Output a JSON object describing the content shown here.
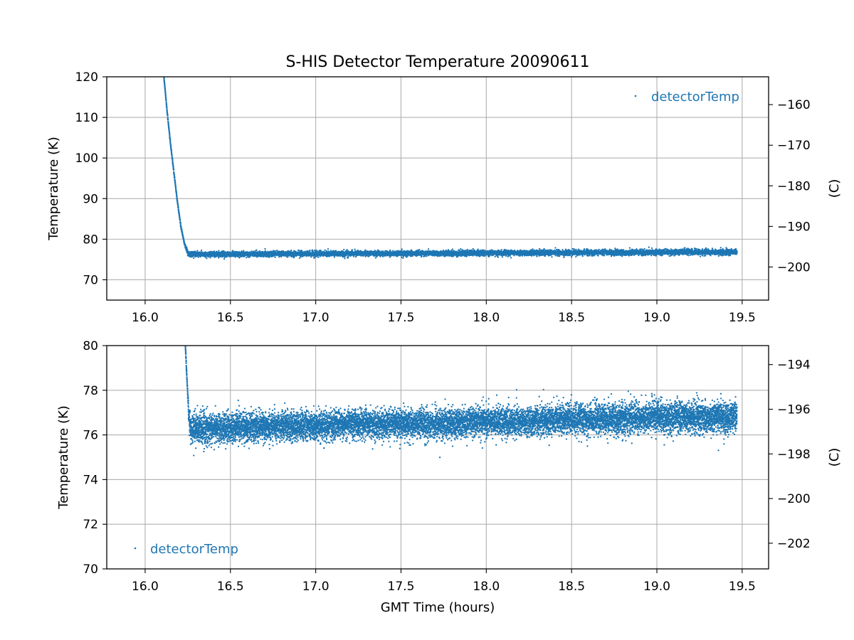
{
  "colors": {
    "series": "#1f77b4"
  },
  "chart_data": [
    {
      "type": "scatter",
      "title": "S-HIS Detector Temperature 20090611",
      "xlabel": "",
      "ylabel": "Temperature (K)",
      "y2label": "(C)",
      "xlim": [
        15.775,
        19.655
      ],
      "ylim": [
        65,
        120
      ],
      "y2lim": [
        -208.15,
        -153.15
      ],
      "xticks": [
        16.0,
        16.5,
        17.0,
        17.5,
        18.0,
        18.5,
        19.0,
        19.5
      ],
      "xtick_labels": [
        "16.0",
        "16.5",
        "17.0",
        "17.5",
        "18.0",
        "18.5",
        "19.0",
        "19.5"
      ],
      "yticks": [
        70,
        80,
        90,
        100,
        110,
        120
      ],
      "ytick_labels": [
        "70",
        "80",
        "90",
        "100",
        "110",
        "120"
      ],
      "y2ticks": [
        -200,
        -190,
        -180,
        -170,
        -160
      ],
      "y2tick_labels": [
        "−200",
        "−190",
        "−180",
        "−170",
        "−160"
      ],
      "grid": true,
      "legend": {
        "placement": "top-right",
        "entries": [
          "detectorTemp"
        ]
      },
      "series": [
        {
          "name": "detectorTemp",
          "x": [
            16.11,
            16.13,
            16.15,
            16.17,
            16.19,
            16.21,
            16.23,
            16.25,
            16.27,
            16.5,
            16.75,
            17.0,
            17.25,
            17.5,
            17.75,
            18.0,
            18.25,
            18.5,
            18.75,
            19.0,
            19.25,
            19.47
          ],
          "y": [
            120.0,
            111.0,
            103.0,
            96.0,
            89.0,
            83.0,
            79.0,
            76.5,
            76.3,
            76.3,
            76.4,
            76.4,
            76.5,
            76.5,
            76.5,
            76.6,
            76.6,
            76.7,
            76.7,
            76.8,
            76.8,
            76.8
          ],
          "spread": [
            0.0,
            0.3,
            0.3,
            0.3,
            0.3,
            0.3,
            0.3,
            0.7,
            0.8,
            0.75,
            0.75,
            0.75,
            0.75,
            0.75,
            0.75,
            0.75,
            0.75,
            0.8,
            0.8,
            0.8,
            0.8,
            0.8
          ]
        }
      ]
    },
    {
      "type": "scatter",
      "title": "",
      "xlabel": "GMT Time (hours)",
      "ylabel": "Temperature (K)",
      "y2label": "(C)",
      "xlim": [
        15.775,
        19.655
      ],
      "ylim": [
        70,
        80
      ],
      "y2lim": [
        -203.15,
        -193.15
      ],
      "xticks": [
        16.0,
        16.5,
        17.0,
        17.5,
        18.0,
        18.5,
        19.0,
        19.5
      ],
      "xtick_labels": [
        "16.0",
        "16.5",
        "17.0",
        "17.5",
        "18.0",
        "18.5",
        "19.0",
        "19.5"
      ],
      "yticks": [
        70,
        72,
        74,
        76,
        78,
        80
      ],
      "ytick_labels": [
        "70",
        "72",
        "74",
        "76",
        "78",
        "80"
      ],
      "y2ticks": [
        -202,
        -200,
        -198,
        -196,
        -194
      ],
      "y2tick_labels": [
        "−202",
        "−200",
        "−198",
        "−196",
        "−194"
      ],
      "grid": true,
      "legend": {
        "placement": "bottom-left",
        "entries": [
          "detectorTemp"
        ]
      },
      "series": [
        {
          "name": "detectorTemp",
          "x": [
            16.236,
            16.245,
            16.255,
            16.265,
            16.28,
            16.5,
            16.75,
            17.0,
            17.25,
            17.5,
            17.75,
            18.0,
            18.25,
            18.5,
            18.75,
            19.0,
            19.25,
            19.47
          ],
          "y": [
            80.0,
            78.5,
            77.0,
            76.3,
            76.3,
            76.3,
            76.4,
            76.4,
            76.5,
            76.5,
            76.5,
            76.6,
            76.6,
            76.7,
            76.7,
            76.8,
            76.8,
            76.8
          ],
          "spread": [
            0.0,
            0.2,
            0.4,
            0.8,
            0.85,
            0.75,
            0.75,
            0.75,
            0.75,
            0.75,
            0.75,
            0.75,
            0.75,
            0.8,
            0.8,
            0.8,
            0.8,
            0.8
          ]
        }
      ]
    }
  ]
}
